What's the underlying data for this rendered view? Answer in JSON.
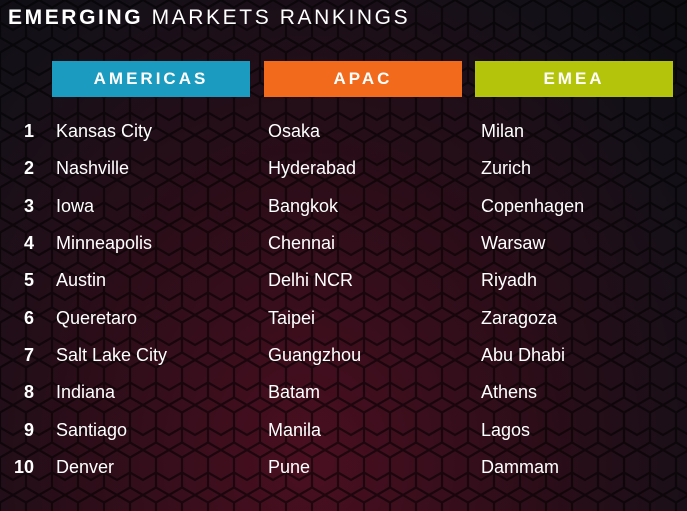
{
  "title": {
    "bold": "EMERGING",
    "rest": " MARKETS RANKINGS"
  },
  "columns": [
    {
      "label": "AMERICAS",
      "color": "#1a9bbf"
    },
    {
      "label": "APAC",
      "color": "#f26a1c"
    },
    {
      "label": "EMEA",
      "color": "#b4c40a"
    }
  ],
  "rows": [
    {
      "rank": "1",
      "americas": "Kansas City",
      "apac": "Osaka",
      "emea": "Milan"
    },
    {
      "rank": "2",
      "americas": "Nashville",
      "apac": "Hyderabad",
      "emea": "Zurich"
    },
    {
      "rank": "3",
      "americas": "Iowa",
      "apac": "Bangkok",
      "emea": "Copenhagen"
    },
    {
      "rank": "4",
      "americas": "Minneapolis",
      "apac": "Chennai",
      "emea": "Warsaw"
    },
    {
      "rank": "5",
      "americas": "Austin",
      "apac": "Delhi NCR",
      "emea": "Riyadh"
    },
    {
      "rank": "6",
      "americas": "Queretaro",
      "apac": "Taipei",
      "emea": "Zaragoza"
    },
    {
      "rank": "7",
      "americas": "Salt Lake City",
      "apac": "Guangzhou",
      "emea": "Abu Dhabi"
    },
    {
      "rank": "8",
      "americas": "Indiana",
      "apac": "Batam",
      "emea": "Athens"
    },
    {
      "rank": "9",
      "americas": "Santiago",
      "apac": "Manila",
      "emea": "Lagos"
    },
    {
      "rank": "10",
      "americas": "Denver",
      "apac": "Pune",
      "emea": "Dammam"
    }
  ]
}
